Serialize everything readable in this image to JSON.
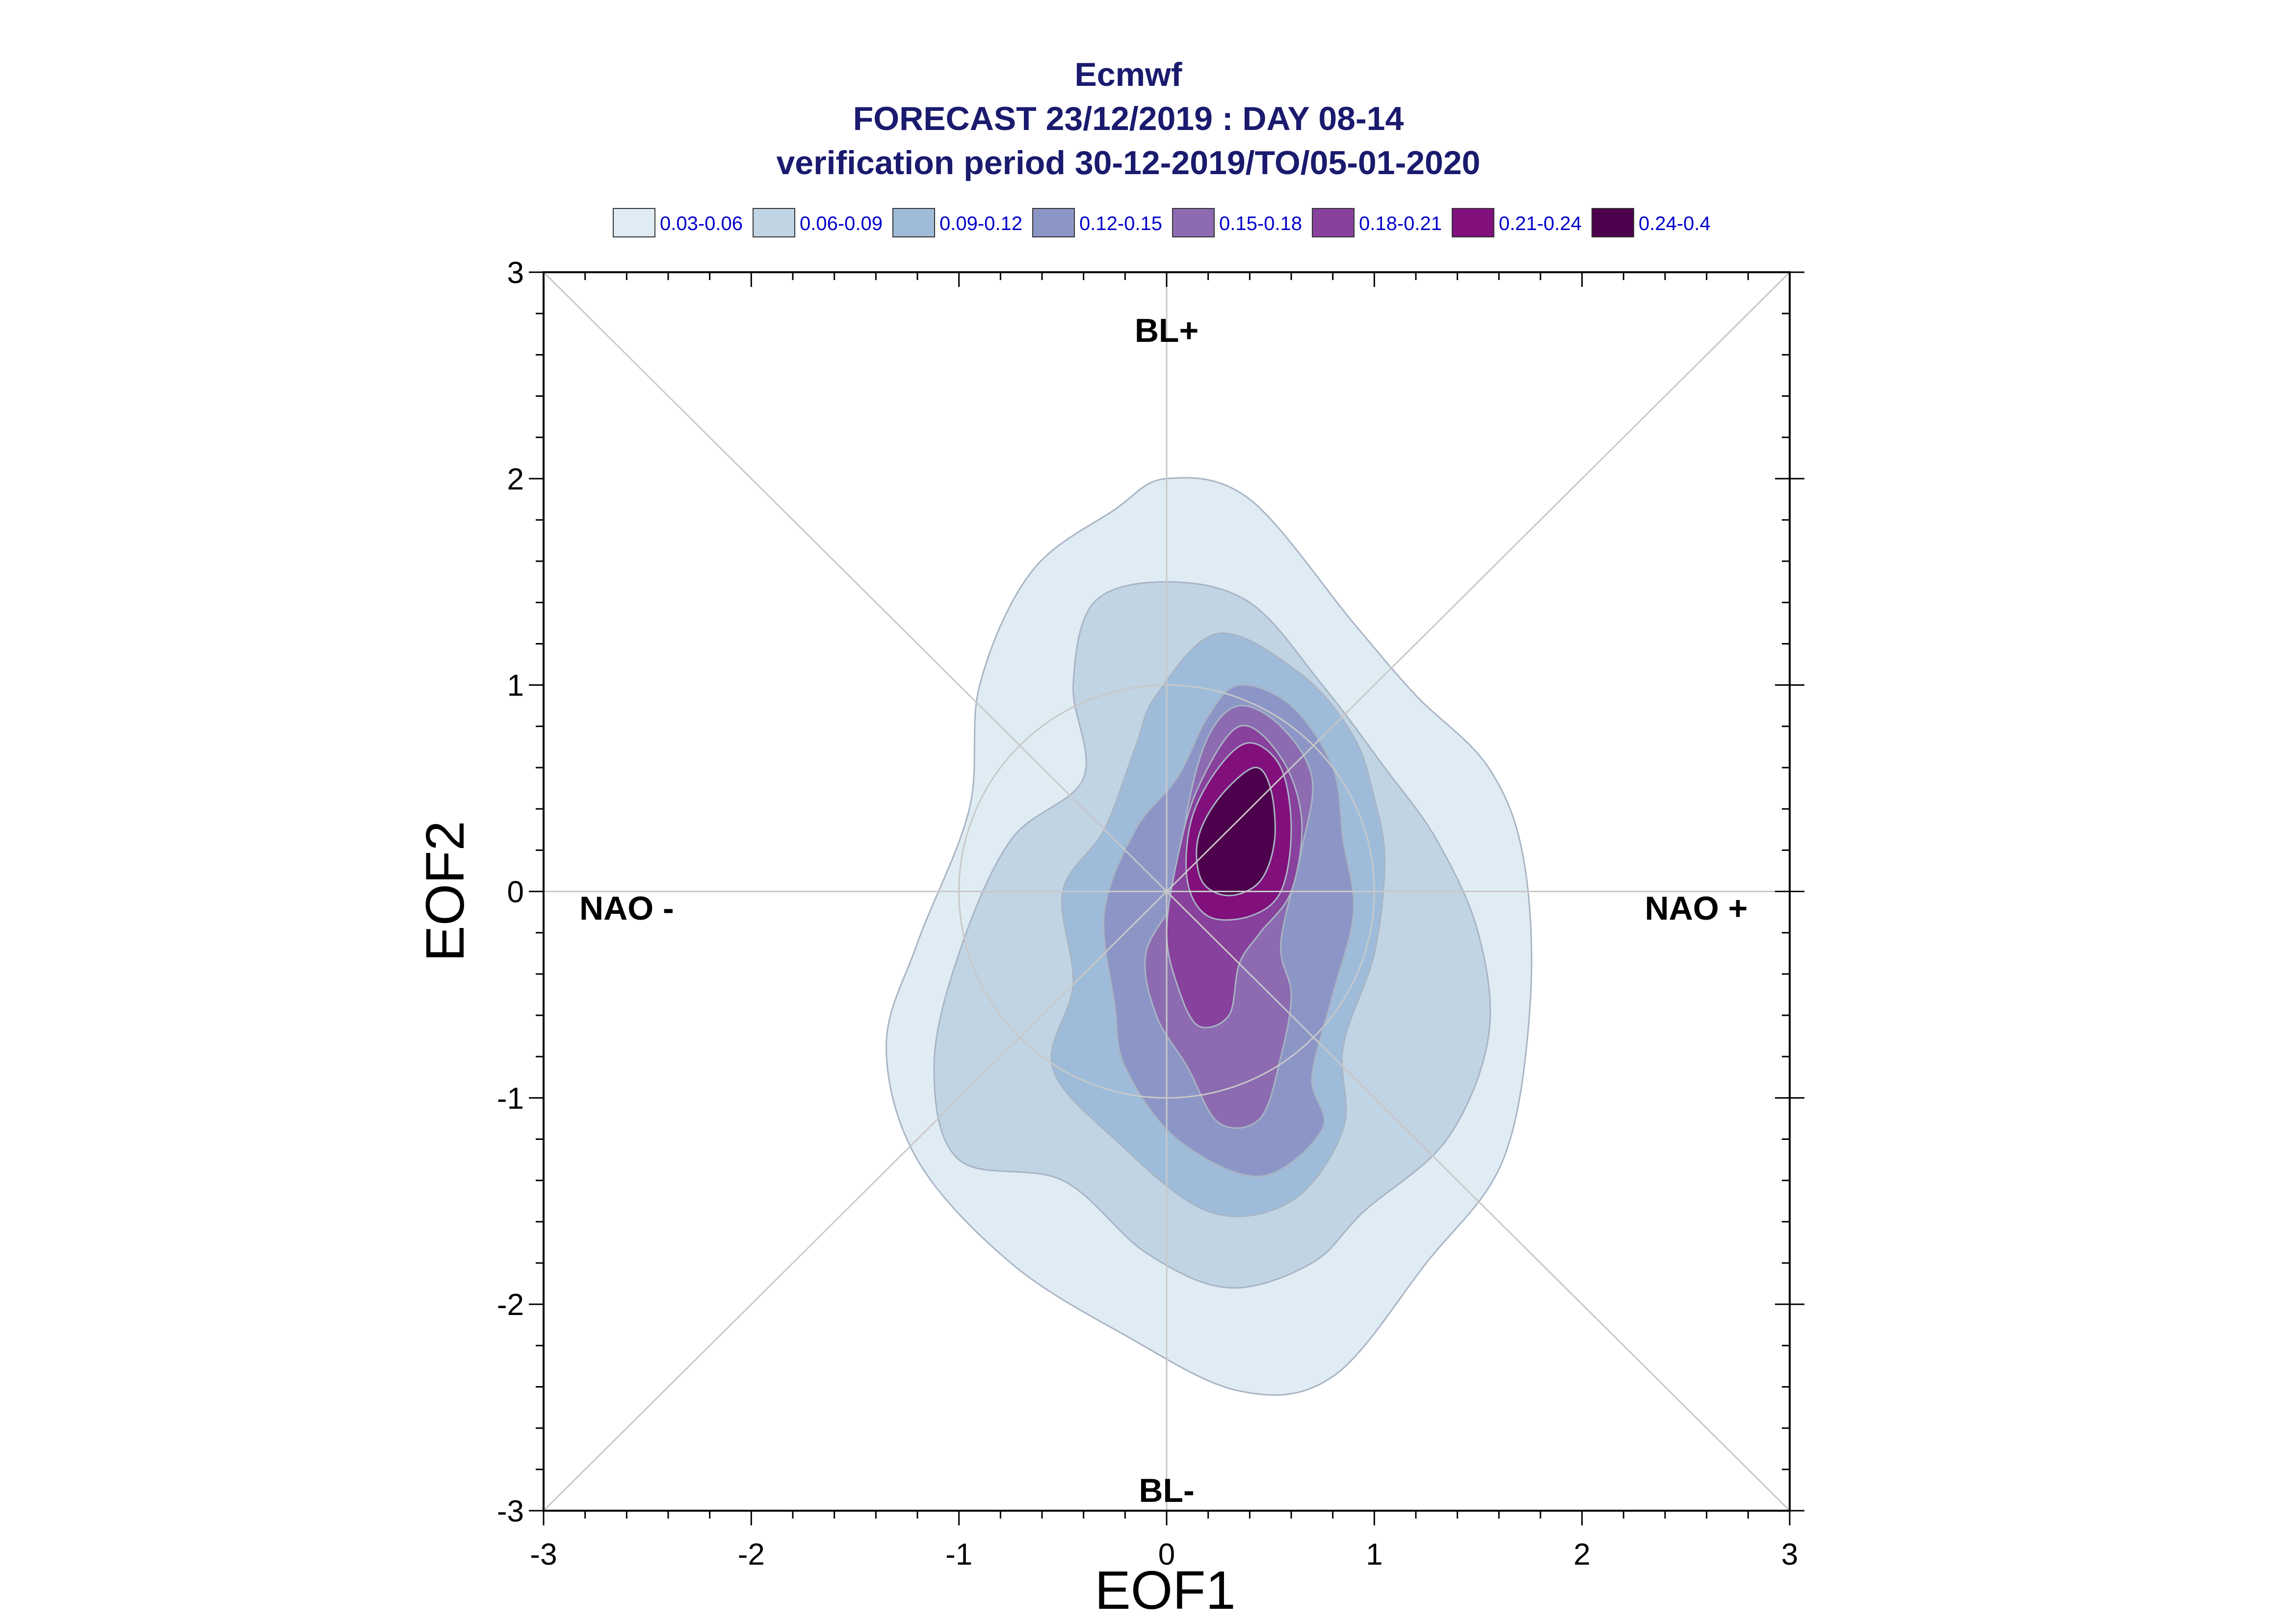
{
  "chart_data": {
    "type": "contour",
    "title_lines": [
      "Ecmwf",
      "FORECAST 23/12/2019 : DAY 08-14",
      "verification period 30-12-2019/TO/05-01-2020"
    ],
    "xlabel": "EOF1",
    "ylabel": "EOF2",
    "xlim": [
      -3,
      3
    ],
    "ylim": [
      -3,
      3
    ],
    "xticks": [
      -3,
      -2,
      -1,
      0,
      1,
      2,
      3
    ],
    "yticks": [
      -3,
      -2,
      -1,
      0,
      1,
      2,
      3
    ],
    "reference_circle_radius": 1,
    "diagonal_guides": true,
    "axis_guides": true,
    "regime_labels": [
      {
        "text": "BL+",
        "x": 0,
        "y": 2.72
      },
      {
        "text": "BL-",
        "x": 0,
        "y": -2.9
      },
      {
        "text": "NAO -",
        "x": -2.6,
        "y": -0.08
      },
      {
        "text": "NAO +",
        "x": 2.55,
        "y": -0.08
      }
    ],
    "legend": [
      {
        "label": "0.03-0.06",
        "color": "#e0ecf4"
      },
      {
        "label": "0.06-0.09",
        "color": "#c0d4e4"
      },
      {
        "label": "0.09-0.12",
        "color": "#9ebcda"
      },
      {
        "label": "0.12-0.15",
        "color": "#8c96c6"
      },
      {
        "label": "0.15-0.18",
        "color": "#8c6bb1"
      },
      {
        "label": "0.18-0.21",
        "color": "#88419d"
      },
      {
        "label": "0.21-0.24",
        "color": "#810f7c"
      },
      {
        "label": "0.24-0.4",
        "color": "#4d004b"
      }
    ],
    "contours": [
      {
        "level": "0.03-0.06",
        "color": "#e0ecf4",
        "points": [
          [
            0.0,
            2.0
          ],
          [
            0.4,
            1.9
          ],
          [
            0.9,
            1.3
          ],
          [
            1.2,
            0.95
          ],
          [
            1.55,
            0.6
          ],
          [
            1.72,
            0.15
          ],
          [
            1.75,
            -0.55
          ],
          [
            1.62,
            -1.3
          ],
          [
            1.25,
            -1.8
          ],
          [
            0.8,
            -2.35
          ],
          [
            0.35,
            -2.42
          ],
          [
            -0.2,
            -2.15
          ],
          [
            -0.75,
            -1.8
          ],
          [
            -1.2,
            -1.3
          ],
          [
            -1.35,
            -0.75
          ],
          [
            -1.2,
            -0.25
          ],
          [
            -0.95,
            0.4
          ],
          [
            -0.9,
            1.0
          ],
          [
            -0.65,
            1.55
          ],
          [
            -0.25,
            1.85
          ]
        ]
      },
      {
        "level": "0.06-0.09",
        "color": "#c0d4e4",
        "points": [
          [
            0.0,
            1.5
          ],
          [
            0.4,
            1.4
          ],
          [
            0.75,
            1.0
          ],
          [
            1.05,
            0.6
          ],
          [
            1.3,
            0.25
          ],
          [
            1.5,
            -0.2
          ],
          [
            1.55,
            -0.7
          ],
          [
            1.35,
            -1.2
          ],
          [
            0.95,
            -1.55
          ],
          [
            0.7,
            -1.8
          ],
          [
            0.3,
            -1.92
          ],
          [
            -0.1,
            -1.75
          ],
          [
            -0.5,
            -1.4
          ],
          [
            -1.0,
            -1.3
          ],
          [
            -1.12,
            -0.85
          ],
          [
            -1.0,
            -0.3
          ],
          [
            -0.75,
            0.25
          ],
          [
            -0.4,
            0.55
          ],
          [
            -0.45,
            1.0
          ],
          [
            -0.35,
            1.4
          ]
        ]
      },
      {
        "level": "0.09-0.12",
        "color": "#9ebcda",
        "points": [
          [
            0.25,
            1.25
          ],
          [
            0.65,
            1.05
          ],
          [
            0.9,
            0.75
          ],
          [
            1.0,
            0.45
          ],
          [
            1.05,
            0.15
          ],
          [
            1.0,
            -0.3
          ],
          [
            0.85,
            -0.75
          ],
          [
            0.85,
            -1.15
          ],
          [
            0.6,
            -1.5
          ],
          [
            0.2,
            -1.55
          ],
          [
            -0.25,
            -1.2
          ],
          [
            -0.55,
            -0.85
          ],
          [
            -0.45,
            -0.45
          ],
          [
            -0.5,
            0.0
          ],
          [
            -0.3,
            0.3
          ],
          [
            -0.15,
            0.7
          ],
          [
            -0.05,
            0.95
          ]
        ]
      },
      {
        "level": "0.12-0.15",
        "color": "#8c96c6",
        "points": [
          [
            0.35,
            1.0
          ],
          [
            0.6,
            0.9
          ],
          [
            0.8,
            0.6
          ],
          [
            0.85,
            0.25
          ],
          [
            0.9,
            -0.1
          ],
          [
            0.8,
            -0.5
          ],
          [
            0.7,
            -0.9
          ],
          [
            0.75,
            -1.15
          ],
          [
            0.45,
            -1.38
          ],
          [
            0.05,
            -1.2
          ],
          [
            -0.2,
            -0.85
          ],
          [
            -0.25,
            -0.55
          ],
          [
            -0.3,
            -0.1
          ],
          [
            -0.15,
            0.3
          ],
          [
            0.05,
            0.55
          ],
          [
            0.2,
            0.85
          ]
        ]
      },
      {
        "level": "0.15-0.18",
        "color": "#8c6bb1",
        "points": [
          [
            0.35,
            0.9
          ],
          [
            0.55,
            0.8
          ],
          [
            0.7,
            0.55
          ],
          [
            0.65,
            0.2
          ],
          [
            0.55,
            -0.25
          ],
          [
            0.6,
            -0.5
          ],
          [
            0.55,
            -0.8
          ],
          [
            0.45,
            -1.1
          ],
          [
            0.25,
            -1.12
          ],
          [
            0.1,
            -0.85
          ],
          [
            -0.05,
            -0.6
          ],
          [
            -0.1,
            -0.3
          ],
          [
            0.05,
            0.0
          ],
          [
            0.1,
            0.4
          ],
          [
            0.2,
            0.75
          ]
        ]
      },
      {
        "level": "0.18-0.21",
        "color": "#88419d",
        "points": [
          [
            0.35,
            0.8
          ],
          [
            0.55,
            0.65
          ],
          [
            0.65,
            0.35
          ],
          [
            0.6,
            0.0
          ],
          [
            0.45,
            -0.2
          ],
          [
            0.35,
            -0.35
          ],
          [
            0.3,
            -0.6
          ],
          [
            0.15,
            -0.65
          ],
          [
            0.05,
            -0.45
          ],
          [
            0.0,
            -0.2
          ],
          [
            0.05,
            0.15
          ],
          [
            0.15,
            0.5
          ]
        ]
      },
      {
        "level": "0.21-0.24",
        "color": "#810f7c",
        "points": [
          [
            0.4,
            0.72
          ],
          [
            0.55,
            0.6
          ],
          [
            0.6,
            0.3
          ],
          [
            0.55,
            0.0
          ],
          [
            0.4,
            -0.12
          ],
          [
            0.2,
            -0.12
          ],
          [
            0.1,
            0.05
          ],
          [
            0.12,
            0.35
          ],
          [
            0.25,
            0.6
          ]
        ]
      },
      {
        "level": "0.24-0.4",
        "color": "#4d004b",
        "points": [
          [
            0.42,
            0.6
          ],
          [
            0.5,
            0.5
          ],
          [
            0.52,
            0.25
          ],
          [
            0.45,
            0.05
          ],
          [
            0.3,
            -0.02
          ],
          [
            0.17,
            0.05
          ],
          [
            0.15,
            0.25
          ],
          [
            0.25,
            0.45
          ]
        ]
      }
    ]
  }
}
